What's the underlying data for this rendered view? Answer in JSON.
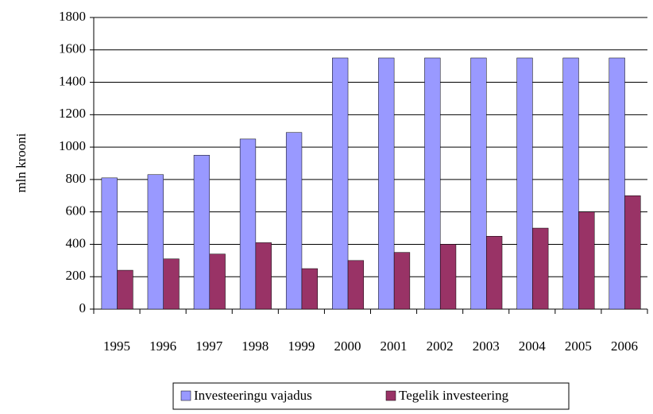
{
  "chart_data": {
    "type": "bar",
    "y_label": "mln krooni",
    "categories": [
      "1995",
      "1996",
      "1997",
      "1998",
      "1999",
      "2000",
      "2001",
      "2002",
      "2003",
      "2004",
      "2005",
      "2006"
    ],
    "series": [
      {
        "name": "Investeeringu vajadus",
        "color": "#9999ff",
        "values": [
          810,
          830,
          950,
          1050,
          1090,
          1550,
          1550,
          1550,
          1550,
          1550,
          1550,
          1550
        ]
      },
      {
        "name": "Tegelik investeering",
        "color": "#993366",
        "values": [
          240,
          310,
          340,
          410,
          250,
          300,
          350,
          400,
          450,
          500,
          600,
          700
        ]
      }
    ],
    "ylim": [
      0,
      1800
    ],
    "yticks": [
      0,
      200,
      400,
      600,
      800,
      1000,
      1200,
      1400,
      1600,
      1800
    ],
    "grid": true,
    "legend": "bottom"
  }
}
